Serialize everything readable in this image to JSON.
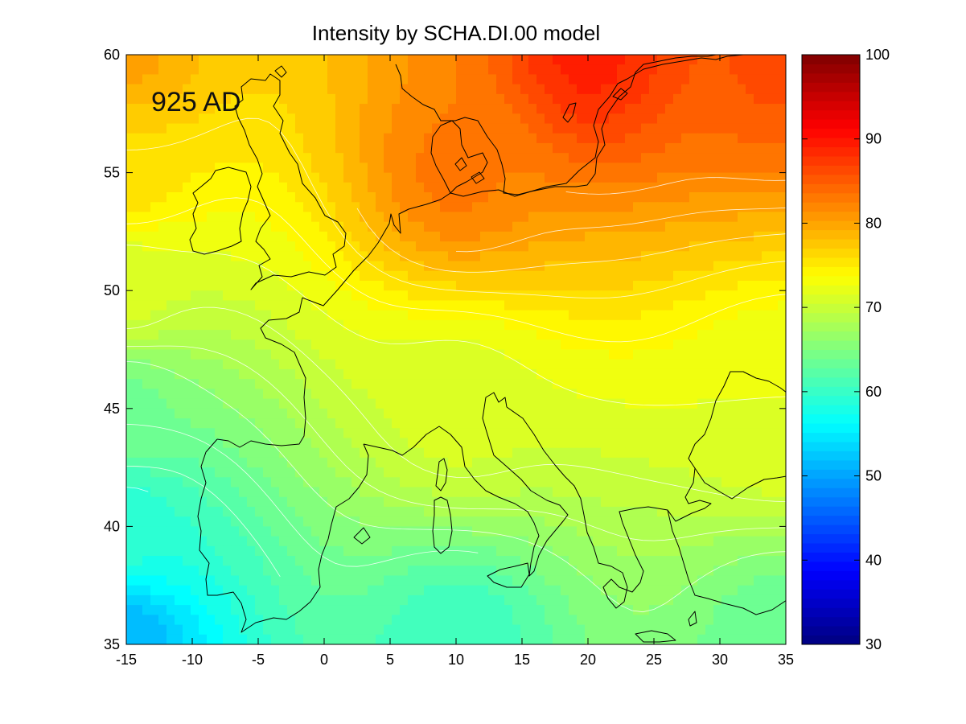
{
  "figure": {
    "title": "Intensity by SCHA.DI.00 model",
    "epoch_label": "925 AD"
  },
  "map": {
    "projection": "lon-lat",
    "lon_range": [
      -15,
      35
    ],
    "lat_range": [
      35,
      60
    ],
    "x_ticks": [
      "-15",
      "-10",
      "-5",
      "0",
      "5",
      "10",
      "15",
      "20",
      "25",
      "30",
      "35"
    ],
    "y_ticks": [
      "35",
      "40",
      "45",
      "50",
      "55",
      "60"
    ],
    "x_tick_values": [
      -15,
      -10,
      -5,
      0,
      5,
      10,
      15,
      20,
      25,
      30,
      35
    ],
    "y_tick_values": [
      35,
      40,
      45,
      50,
      55,
      60
    ],
    "colormap": "jet",
    "contour_color": "#ffffff",
    "coastline_color": "#000000"
  },
  "chart_data": {
    "type": "heatmap",
    "title": "Intensity by SCHA.DI.00 model",
    "annotation": "925 AD",
    "xlim": [
      -15,
      35
    ],
    "ylim": [
      35,
      60
    ],
    "field_samples": [
      {
        "lon": -15,
        "lat": 35,
        "value": 51
      },
      {
        "lon": -15,
        "lat": 40,
        "value": 59
      },
      {
        "lon": -15,
        "lat": 45,
        "value": 64
      },
      {
        "lon": -15,
        "lat": 50,
        "value": 71
      },
      {
        "lon": -15,
        "lat": 55,
        "value": 76
      },
      {
        "lon": -15,
        "lat": 60,
        "value": 80
      },
      {
        "lon": 10,
        "lat": 35,
        "value": 60
      },
      {
        "lon": 10,
        "lat": 45,
        "value": 71
      },
      {
        "lon": 10,
        "lat": 55,
        "value": 83
      },
      {
        "lon": 20,
        "lat": 60,
        "value": 89
      },
      {
        "lon": 35,
        "lat": 35,
        "value": 63
      },
      {
        "lon": 35,
        "lat": 45,
        "value": 72
      },
      {
        "lon": 35,
        "lat": 60,
        "value": 86
      }
    ],
    "colorbar": {
      "min": 30,
      "max": 100,
      "ticks": [
        "30",
        "40",
        "50",
        "60",
        "70",
        "80",
        "90",
        "100"
      ],
      "tick_values": [
        30,
        40,
        50,
        60,
        70,
        80,
        90,
        100
      ]
    }
  }
}
